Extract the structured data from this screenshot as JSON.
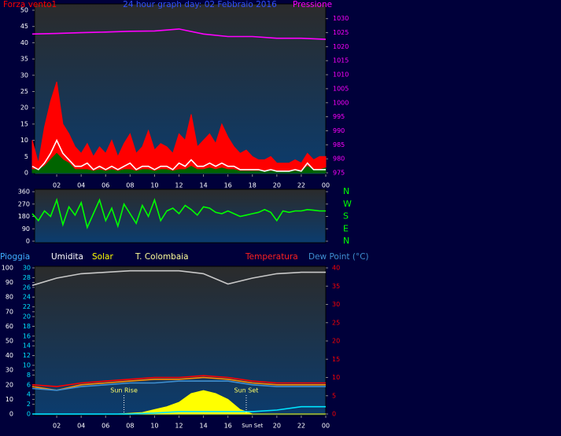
{
  "chart_data": [
    {
      "type": "line",
      "title": "24 hour graph day: 02 Febbraio 2016",
      "x": [
        0,
        0.5,
        1,
        1.5,
        2,
        2.5,
        3,
        3.5,
        4,
        4.5,
        5,
        5.5,
        6,
        6.5,
        7,
        7.5,
        8,
        8.5,
        9,
        9.5,
        10,
        10.5,
        11,
        11.5,
        12,
        12.5,
        13,
        13.5,
        14,
        14.5,
        15,
        15.5,
        16,
        16.5,
        17,
        17.5,
        18,
        18.5,
        19,
        19.5,
        20,
        20.5,
        21,
        21.5,
        22,
        22.5,
        23,
        23.5,
        24
      ],
      "xlim": [
        0,
        24
      ],
      "xticks": [
        {
          "value": 2,
          "label": "02"
        },
        {
          "value": 4,
          "label": "04"
        },
        {
          "value": 6,
          "label": "06"
        },
        {
          "value": 8,
          "label": "08"
        },
        10,
        12,
        14,
        16,
        18,
        20,
        22,
        {
          "value": 24,
          "label": "00"
        }
      ],
      "ylim": [
        0,
        50
      ],
      "yticks": [
        0,
        5,
        10,
        15,
        20,
        25,
        30,
        35,
        40,
        45,
        50
      ],
      "y2lim": [
        975,
        1033
      ],
      "y2ticks": [
        975,
        980,
        985,
        990,
        995,
        1000,
        1005,
        1010,
        1015,
        1020,
        1025,
        1030
      ],
      "series": [
        {
          "name": "Forza vento1",
          "color": "#ff0000",
          "fill": true,
          "values": [
            10,
            3,
            14,
            22,
            28,
            15,
            12,
            8,
            6,
            9,
            5,
            8,
            6,
            10,
            5,
            9,
            12,
            6,
            8,
            13,
            7,
            9,
            8,
            6,
            12,
            10,
            18,
            8,
            10,
            12,
            9,
            15,
            11,
            8,
            6,
            7,
            5,
            4,
            4,
            5,
            3,
            3,
            3,
            4,
            3,
            6,
            4,
            5,
            5
          ]
        },
        {
          "color": "#006400",
          "fill": true,
          "values": [
            1,
            1,
            2,
            4,
            6,
            4,
            3,
            1,
            1,
            1,
            0.5,
            1,
            0.5,
            1,
            0.5,
            1,
            1,
            0.5,
            1,
            1,
            0.5,
            1,
            1,
            0.5,
            1,
            1,
            2,
            1,
            1,
            1.5,
            1,
            1.5,
            1,
            1,
            0.5,
            0.5,
            0.5,
            0.5,
            0.5,
            0.5,
            0.5,
            0.5,
            0.5,
            0.5,
            0.5,
            2,
            1,
            1,
            1.5
          ]
        },
        {
          "color": "#ffffff",
          "fill": false,
          "values": [
            2,
            1,
            3,
            6,
            10,
            6,
            4,
            2,
            2,
            3,
            1,
            2,
            1,
            2,
            1,
            2,
            3,
            1,
            2,
            2,
            1,
            2,
            2,
            1,
            3,
            2,
            4,
            2,
            2,
            3,
            2,
            3,
            2,
            2,
            1,
            1,
            1,
            1,
            0.5,
            1,
            0.5,
            0.5,
            0.5,
            1,
            0.5,
            3,
            1,
            1,
            1
          ]
        },
        {
          "name": "Pressione",
          "color": "#ff00ff",
          "fill": false,
          "axis": "y2",
          "x": [
            0,
            2,
            4,
            6,
            8,
            10,
            12,
            14,
            16,
            18,
            20,
            22,
            24
          ],
          "values": [
            1024.5,
            1024.7,
            1025,
            1025.2,
            1025.5,
            1025.6,
            1026.3,
            1024.5,
            1023.6,
            1023.6,
            1023,
            1023,
            1022.6
          ]
        }
      ]
    },
    {
      "type": "line",
      "x": [
        0,
        0.5,
        1,
        1.5,
        2,
        2.5,
        3,
        3.5,
        4,
        4.5,
        5,
        5.5,
        6,
        6.5,
        7,
        7.5,
        8,
        8.5,
        9,
        9.5,
        10,
        10.5,
        11,
        11.5,
        12,
        12.5,
        13,
        13.5,
        14,
        14.5,
        15,
        15.5,
        16,
        16.5,
        17,
        17.5,
        18,
        18.5,
        19,
        19.5,
        20,
        20.5,
        21,
        21.5,
        22,
        22.5,
        23,
        23.5,
        24
      ],
      "xlim": [
        0,
        24
      ],
      "ylim": [
        0,
        360
      ],
      "yticks": [
        0,
        90,
        180,
        270,
        360
      ],
      "y2lim": [
        0,
        360
      ],
      "y2ticks": [
        {
          "value": 360,
          "label": "N"
        },
        {
          "value": 270,
          "label": "W"
        },
        {
          "value": 180,
          "label": "S"
        },
        {
          "value": 90,
          "label": "E"
        },
        {
          "value": 0,
          "label": "N"
        }
      ],
      "series": [
        {
          "color": "#00ff00",
          "fill": false,
          "values": [
            200,
            150,
            220,
            180,
            300,
            120,
            250,
            190,
            280,
            100,
            200,
            300,
            150,
            240,
            110,
            270,
            200,
            130,
            260,
            180,
            300,
            150,
            220,
            240,
            200,
            260,
            230,
            190,
            250,
            240,
            210,
            200,
            220,
            200,
            180,
            190,
            200,
            210,
            230,
            210,
            150,
            220,
            210,
            220,
            220,
            230,
            225,
            220,
            220
          ]
        }
      ]
    },
    {
      "type": "line",
      "x": [
        0,
        2,
        4,
        6,
        8,
        10,
        12,
        14,
        16,
        18,
        20,
        22,
        24
      ],
      "xlim": [
        0,
        24
      ],
      "xticks": [
        {
          "value": 2,
          "label": "02"
        },
        {
          "value": 4,
          "label": "04"
        },
        {
          "value": 6,
          "label": "06"
        },
        {
          "value": 8,
          "label": "08"
        },
        10,
        12,
        14,
        16,
        {
          "value": 18,
          "label": "Sun Set"
        },
        20,
        22,
        {
          "value": 24,
          "label": "00"
        }
      ],
      "ylim": [
        0,
        100
      ],
      "yticks": [
        0,
        10,
        20,
        30,
        40,
        50,
        60,
        70,
        80,
        90,
        100
      ],
      "y3lim": [
        0,
        30
      ],
      "y3ticks": [
        0,
        2,
        4,
        6,
        8,
        10,
        12,
        14,
        16,
        18,
        20,
        22,
        24,
        26,
        28,
        30
      ],
      "y2lim": [
        0,
        40
      ],
      "y2ticks": [
        0,
        5,
        10,
        15,
        20,
        25,
        30,
        35,
        40
      ],
      "series": [
        {
          "name": "Pioggia",
          "color": "#00e5ff",
          "fill": false,
          "axis": "y3",
          "values": [
            0,
            0,
            0,
            0,
            0,
            0.2,
            0.5,
            0.5,
            0.5,
            0.5,
            0.8,
            1.5,
            1.5
          ]
        },
        {
          "name": "Umidita",
          "color": "#c8c8c8",
          "fill": false,
          "values": [
            88,
            93,
            96,
            97,
            98,
            98,
            98,
            96,
            89,
            93,
            96,
            97,
            97
          ]
        },
        {
          "name": "Solar",
          "color": "#ffff00",
          "fill": true,
          "x": [
            0,
            1,
            2,
            3,
            4,
            5,
            6,
            7,
            8,
            9,
            10,
            11,
            12,
            13,
            14,
            15,
            16,
            17,
            18,
            19,
            20,
            21,
            22,
            23,
            24
          ],
          "values": [
            0,
            0,
            0,
            0,
            0,
            0,
            0,
            0,
            0.5,
            1,
            3,
            5,
            8,
            14,
            16,
            14,
            10,
            3,
            0,
            0,
            0,
            0,
            0,
            0,
            0
          ]
        },
        {
          "name": "T. Colombaia",
          "color": "#ff8c00",
          "fill": false,
          "axis": "y2",
          "values": [
            7.5,
            6.5,
            8,
            8.5,
            9,
            9.5,
            9.5,
            10,
            9.5,
            8.5,
            8,
            8,
            8
          ]
        },
        {
          "name": "Temperatura",
          "color": "#ff0000",
          "fill": false,
          "axis": "y2",
          "values": [
            8,
            7.5,
            8.5,
            9,
            9.5,
            10,
            10,
            10.5,
            10,
            9,
            8.5,
            8.5,
            8.5
          ]
        },
        {
          "name": "Dew Point (°C)",
          "color": "#3f8fd0",
          "fill": false,
          "axis": "y2",
          "values": [
            7,
            6.5,
            7.5,
            8,
            8.5,
            8.5,
            9,
            9,
            9,
            8,
            7.5,
            7.5,
            7.5
          ]
        }
      ],
      "annotations": [
        {
          "text": "Sun Rise",
          "x": 7.5
        },
        {
          "text": "Sun Set",
          "x": 17.5
        }
      ]
    }
  ]
}
